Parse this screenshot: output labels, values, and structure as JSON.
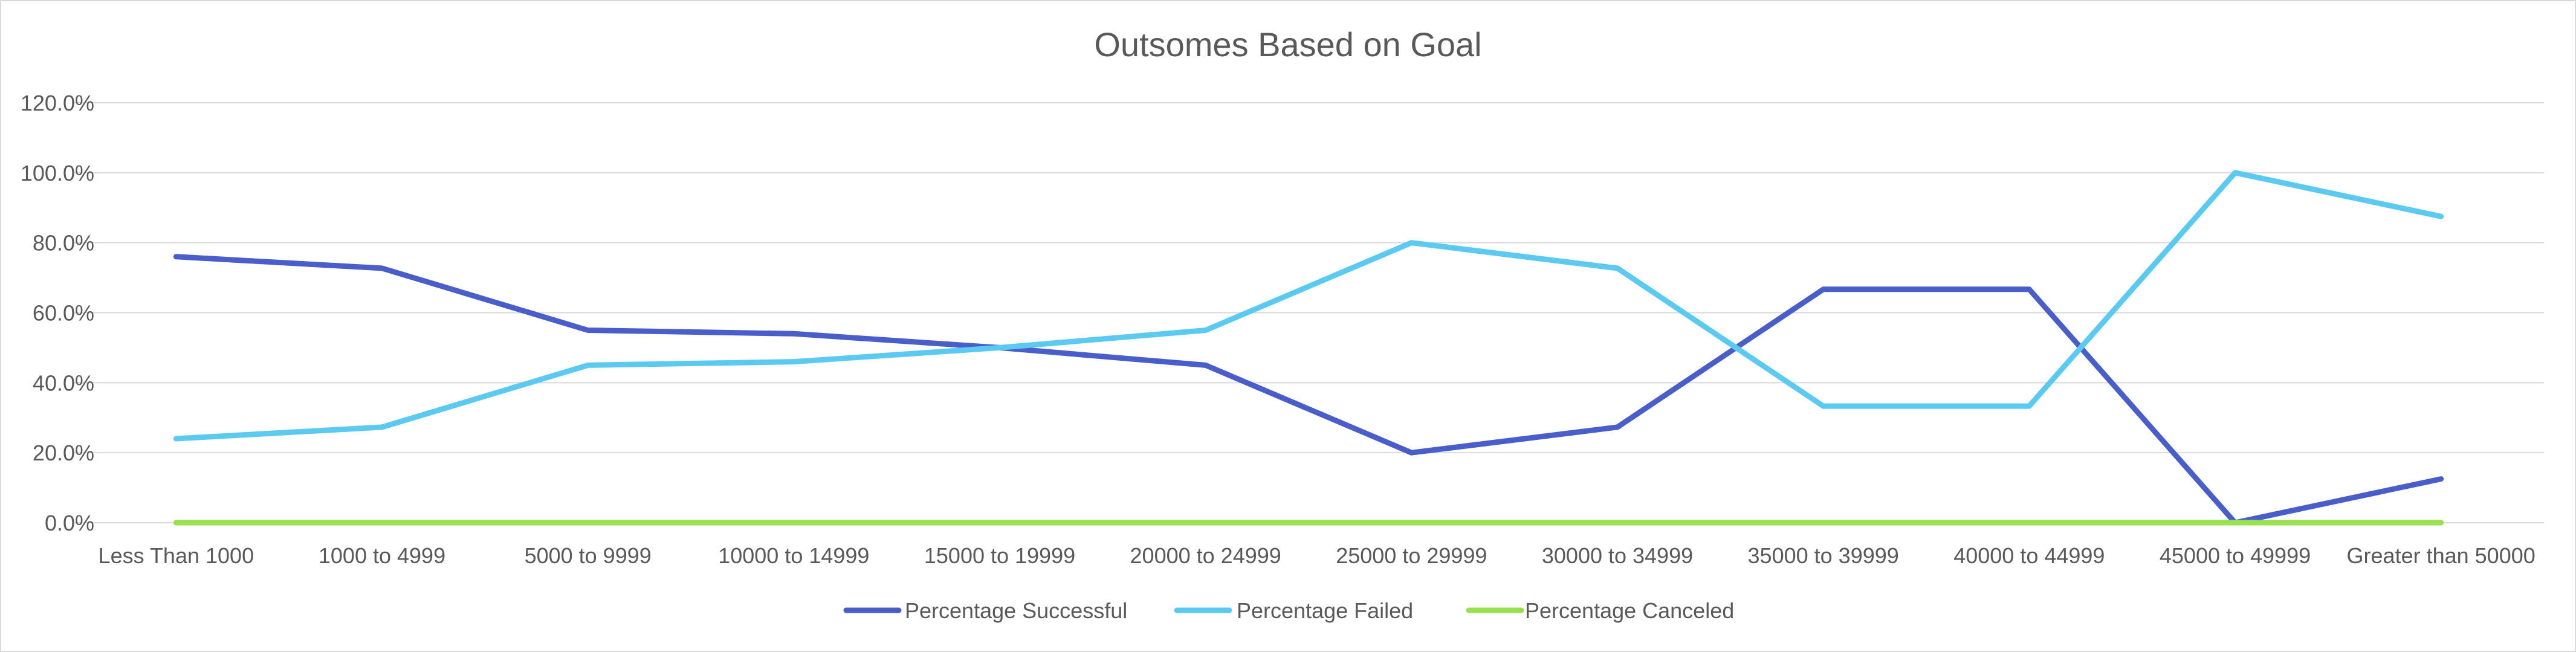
{
  "chart_data": {
    "type": "line",
    "title": "Outsomes Based on Goal",
    "xlabel": "",
    "ylabel": "",
    "categories": [
      "Less Than 1000",
      "1000 to 4999",
      "5000 to 9999",
      "10000 to 14999",
      "15000 to 19999",
      "20000 to 24999",
      "25000 to 29999",
      "30000 to 34999",
      "35000 to 39999",
      "40000 to 44999",
      "45000 to 49999",
      "Greater than 50000"
    ],
    "y_ticks": [
      "0.0%",
      "20.0%",
      "40.0%",
      "60.0%",
      "80.0%",
      "100.0%",
      "120.0%"
    ],
    "ylim": [
      0,
      120
    ],
    "grid": true,
    "legend_position": "bottom",
    "series": [
      {
        "name": "Percentage Successful",
        "color": "#4a5ec9",
        "values": [
          76,
          72.7,
          55,
          54,
          50,
          45,
          20,
          27.3,
          66.7,
          66.7,
          0,
          12.5
        ]
      },
      {
        "name": "Percentage Failed",
        "color": "#5ccaf0",
        "values": [
          24,
          27.3,
          45,
          46,
          50,
          55,
          80,
          72.7,
          33.3,
          33.3,
          100,
          87.5
        ]
      },
      {
        "name": "Percentage Canceled",
        "color": "#98e04e",
        "values": [
          0,
          0,
          0,
          0,
          0,
          0,
          0,
          0,
          0,
          0,
          0,
          0
        ]
      }
    ]
  }
}
